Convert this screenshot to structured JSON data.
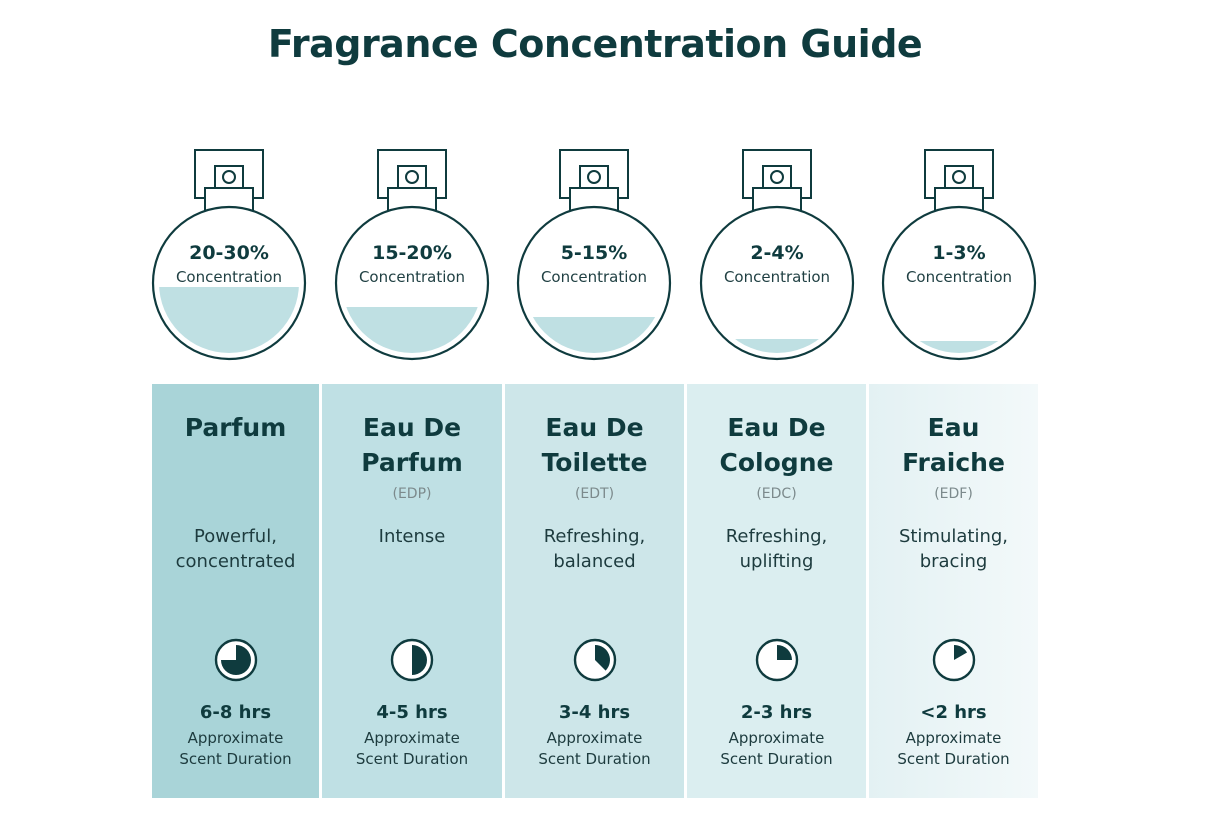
{
  "title": "Fragrance Concentration Guide",
  "colors": {
    "text_dark": "#0f3b3e",
    "liquid": "#bfe0e3",
    "column_tints": [
      "#a9d4d8",
      "#bfe0e4",
      "#cde6e9",
      "#dbeef0",
      "#e8f4f5"
    ]
  },
  "fragrances": [
    {
      "concentration": "20-30%",
      "concentration_label": "Concentration",
      "fill_level": 0.3,
      "name": "Parfum",
      "abbr": "",
      "description": "Powerful,\nconcentrated",
      "clock_fraction": 0.75,
      "duration": "6-8 hrs",
      "duration_label_1": "Approximate",
      "duration_label_2": "Scent Duration"
    },
    {
      "concentration": "15-20%",
      "concentration_label": "Concentration",
      "fill_level": 0.2,
      "name": "Eau De\nParfum",
      "abbr": "(EDP)",
      "description": "Intense",
      "clock_fraction": 0.5,
      "duration": "4-5 hrs",
      "duration_label_1": "Approximate",
      "duration_label_2": "Scent Duration"
    },
    {
      "concentration": "5-15%",
      "concentration_label": "Concentration",
      "fill_level": 0.15,
      "name": "Eau De\nToilette",
      "abbr": "(EDT)",
      "description": "Refreshing,\nbalanced",
      "clock_fraction": 0.375,
      "duration": "3-4 hrs",
      "duration_label_1": "Approximate",
      "duration_label_2": "Scent Duration"
    },
    {
      "concentration": "2-4%",
      "concentration_label": "Concentration",
      "fill_level": 0.04,
      "name": "Eau De\nCologne",
      "abbr": "(EDC)",
      "description": "Refreshing,\nuplifting",
      "clock_fraction": 0.25,
      "duration": "2-3 hrs",
      "duration_label_1": "Approximate",
      "duration_label_2": "Scent Duration"
    },
    {
      "concentration": "1-3%",
      "concentration_label": "Concentration",
      "fill_level": 0.03,
      "name": "Eau\nFraiche",
      "abbr": "(EDF)",
      "description": "Stimulating,\nbracing",
      "clock_fraction": 0.167,
      "duration": "<2 hrs",
      "duration_label_1": "Approximate",
      "duration_label_2": "Scent Duration"
    }
  ]
}
